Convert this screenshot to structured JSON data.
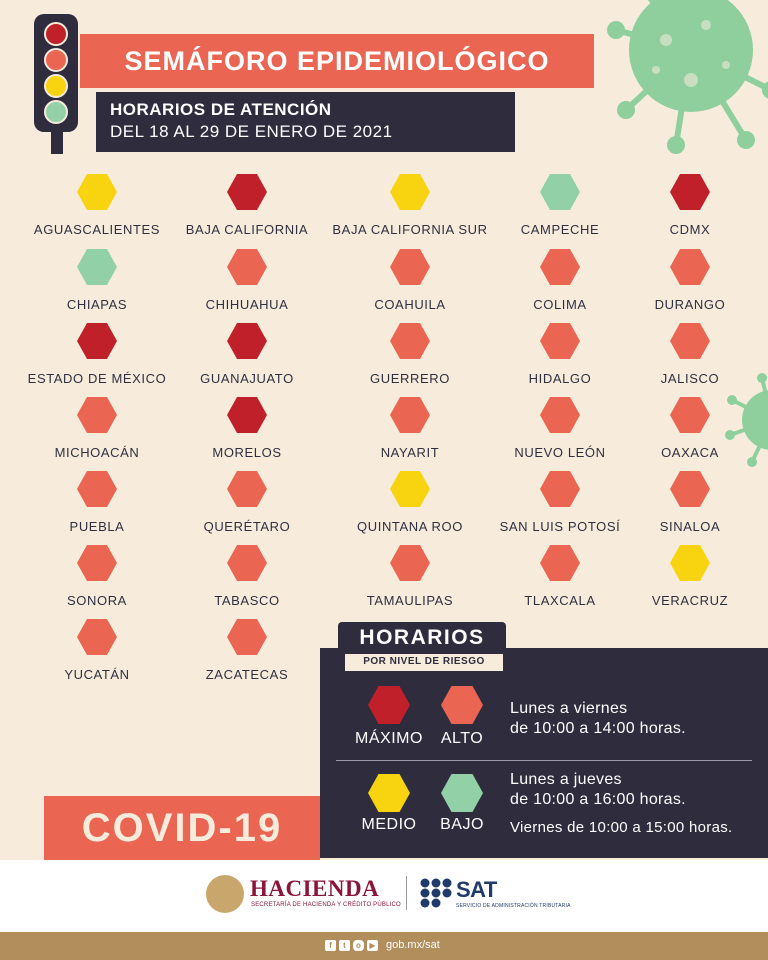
{
  "colors": {
    "maximo": "#c0202a",
    "alto": "#eb6553",
    "medio": "#f8d310",
    "bajo": "#92d0a7",
    "dark": "#2e2c3d",
    "cream": "#f7ecdc",
    "gold": "#b38e5d"
  },
  "header": {
    "title": "SEMÁFORO EPIDEMIOLÓGICO",
    "subtitle_line1": "HORARIOS DE ATENCIÓN",
    "subtitle_line2": "DEL 18 AL 29 DE ENERO DE 2021"
  },
  "states": [
    {
      "name": "AGUASCALIENTES",
      "level": "medio"
    },
    {
      "name": "BAJA CALIFORNIA",
      "level": "maximo"
    },
    {
      "name": "BAJA CALIFORNIA SUR",
      "level": "medio"
    },
    {
      "name": "CAMPECHE",
      "level": "bajo"
    },
    {
      "name": "CDMX",
      "level": "maximo"
    },
    {
      "name": "CHIAPAS",
      "level": "bajo"
    },
    {
      "name": "CHIHUAHUA",
      "level": "alto"
    },
    {
      "name": "COAHUILA",
      "level": "alto"
    },
    {
      "name": "COLIMA",
      "level": "alto"
    },
    {
      "name": "DURANGO",
      "level": "alto"
    },
    {
      "name": "ESTADO DE MÉXICO",
      "level": "maximo"
    },
    {
      "name": "GUANAJUATO",
      "level": "maximo"
    },
    {
      "name": "GUERRERO",
      "level": "alto"
    },
    {
      "name": "HIDALGO",
      "level": "alto"
    },
    {
      "name": "JALISCO",
      "level": "alto"
    },
    {
      "name": "MICHOACÁN",
      "level": "alto"
    },
    {
      "name": "MORELOS",
      "level": "maximo"
    },
    {
      "name": "NAYARIT",
      "level": "alto"
    },
    {
      "name": "NUEVO LEÓN",
      "level": "alto"
    },
    {
      "name": "OAXACA",
      "level": "alto"
    },
    {
      "name": "PUEBLA",
      "level": "alto"
    },
    {
      "name": "QUERÉTARO",
      "level": "alto"
    },
    {
      "name": "QUINTANA ROO",
      "level": "medio"
    },
    {
      "name": "SAN LUIS POTOSÍ",
      "level": "alto"
    },
    {
      "name": "SINALOA",
      "level": "alto"
    },
    {
      "name": "SONORA",
      "level": "alto"
    },
    {
      "name": "TABASCO",
      "level": "alto"
    },
    {
      "name": "TAMAULIPAS",
      "level": "alto"
    },
    {
      "name": "TLAXCALA",
      "level": "alto"
    },
    {
      "name": "VERACRUZ",
      "level": "medio"
    },
    {
      "name": "YUCATÁN",
      "level": "alto"
    },
    {
      "name": "ZACATECAS",
      "level": "alto"
    }
  ],
  "horarios": {
    "title": "HORARIOS",
    "subtitle": "POR NIVEL DE RIESGO",
    "levels": {
      "maximo": "MÁXIMO",
      "alto": "ALTO",
      "medio": "MEDIO",
      "bajo": "BAJO"
    },
    "schedule_high_line1": "Lunes a viernes",
    "schedule_high_line2": "de 10:00 a 14:00 horas.",
    "schedule_low_line1": "Lunes a jueves",
    "schedule_low_line2": "de 10:00 a 16:00 horas.",
    "schedule_low_line3": "Viernes de 10:00 a 15:00 horas."
  },
  "covid_label": "COVID-19",
  "footer": {
    "hacienda_name": "HACIENDA",
    "hacienda_sub": "SECRETARÍA DE HACIENDA Y CRÉDITO PÚBLICO",
    "sat_name": "SAT",
    "sat_sub": "SERVICIO DE ADMINISTRACIÓN TRIBUTARIA",
    "url": "gob.mx/sat",
    "social_icons": [
      "facebook-icon",
      "twitter-icon",
      "instagram-icon",
      "youtube-icon"
    ]
  }
}
